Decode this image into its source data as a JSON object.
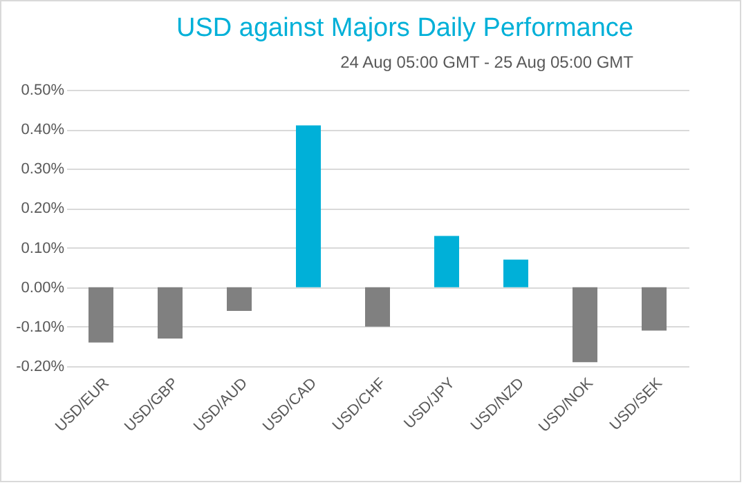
{
  "chart_data": {
    "type": "bar",
    "title": "USD against Majors Daily Performance",
    "subtitle": "24 Aug 05:00 GMT -  25 Aug  05:00 GMT",
    "categories": [
      "USD/EUR",
      "USD/GBP",
      "USD/AUD",
      "USD/CAD",
      "USD/CHF",
      "USD/JPY",
      "USD/NZD",
      "USD/NOK",
      "USD/SEK"
    ],
    "values": [
      -0.14,
      -0.13,
      -0.06,
      0.41,
      -0.1,
      0.13,
      0.07,
      -0.19,
      -0.11
    ],
    "colors": [
      "#808080",
      "#808080",
      "#808080",
      "#00b0d8",
      "#808080",
      "#00b0d8",
      "#00b0d8",
      "#808080",
      "#808080"
    ],
    "ylim": [
      -0.2,
      0.5
    ],
    "yticks": [
      {
        "value": -0.2,
        "label": "-0.20%"
      },
      {
        "value": -0.1,
        "label": "-0.10%"
      },
      {
        "value": 0,
        "label": "0.00%"
      },
      {
        "value": 0.1,
        "label": "0.10%"
      },
      {
        "value": 0.2,
        "label": "0.20%"
      },
      {
        "value": 0.3,
        "label": "0.30%"
      },
      {
        "value": 0.4,
        "label": "0.40%"
      },
      {
        "value": 0.5,
        "label": "0.50%"
      }
    ],
    "grid": "y"
  }
}
